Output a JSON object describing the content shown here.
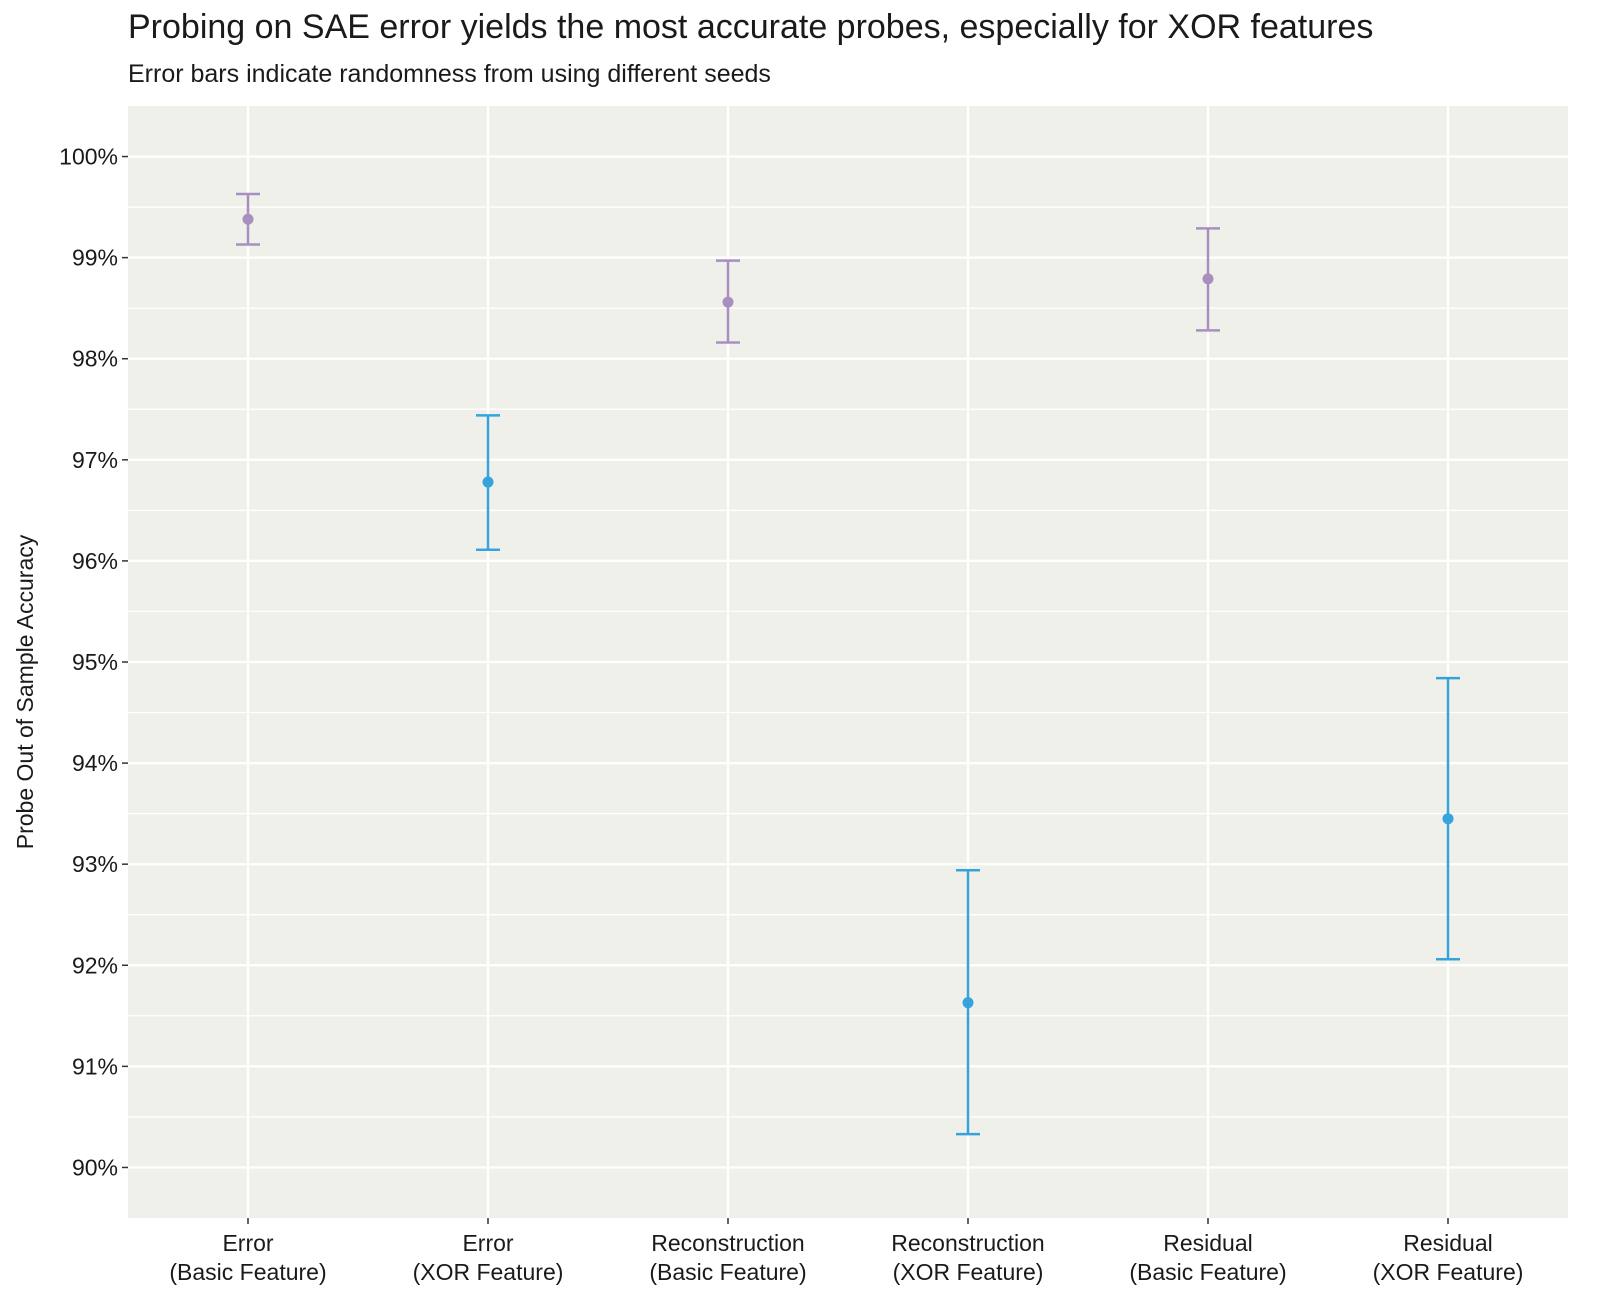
{
  "chart_data": {
    "type": "scatter",
    "title": "Probing on SAE error yields the most accurate probes, especially for XOR features",
    "subtitle": "Error bars indicate randomness from using different seeds",
    "ylabel": "Probe Out of Sample Accuracy",
    "xlabel": "",
    "ylim": [
      89.5,
      100.5
    ],
    "yticks": [
      90,
      91,
      92,
      93,
      94,
      95,
      96,
      97,
      98,
      99,
      100
    ],
    "ytick_labels": [
      "90%",
      "91%",
      "92%",
      "93%",
      "94%",
      "95%",
      "96%",
      "97%",
      "98%",
      "99%",
      "100%"
    ],
    "grid": true,
    "legend": "none",
    "categories": [
      {
        "line1": "Error",
        "line2": "(Basic Feature)"
      },
      {
        "line1": "Error",
        "line2": "(XOR Feature)"
      },
      {
        "line1": "Reconstruction",
        "line2": "(Basic Feature)"
      },
      {
        "line1": "Reconstruction",
        "line2": "(XOR Feature)"
      },
      {
        "line1": "Residual",
        "line2": "(Basic Feature)"
      },
      {
        "line1": "Residual",
        "line2": "(XOR Feature)"
      }
    ],
    "series": [
      {
        "name": "Basic Feature",
        "color": "#a98fc0",
        "points": [
          {
            "category": 0,
            "value": 99.38,
            "low": 99.13,
            "high": 99.63
          },
          {
            "category": 2,
            "value": 98.56,
            "low": 98.16,
            "high": 98.97
          },
          {
            "category": 4,
            "value": 98.79,
            "low": 98.28,
            "high": 99.29
          }
        ]
      },
      {
        "name": "XOR Feature",
        "color": "#36a3dc",
        "points": [
          {
            "category": 1,
            "value": 96.78,
            "low": 96.11,
            "high": 97.44
          },
          {
            "category": 3,
            "value": 91.63,
            "low": 90.33,
            "high": 92.94
          },
          {
            "category": 5,
            "value": 93.45,
            "low": 92.06,
            "high": 94.84
          }
        ]
      }
    ]
  }
}
